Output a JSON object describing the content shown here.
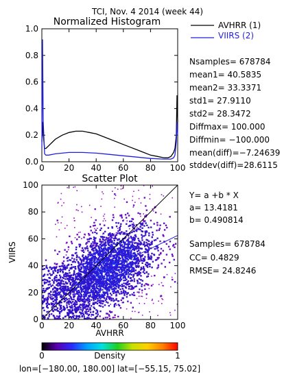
{
  "header": {
    "title": "TCI,  Nov. 4 2014 (week 44)"
  },
  "legend": {
    "entries": [
      {
        "label": "AVHRR (1)",
        "color": "#000000"
      },
      {
        "label": "VIIRS (2)",
        "color": "#1f1fdd"
      }
    ]
  },
  "stats": {
    "histogram": [
      "Nsamples= 678784",
      "mean1=    40.5835",
      "mean2=    33.3371",
      "std1=     27.9110",
      "std2=     28.3472",
      "Diffmax=  100.000",
      "Diffmin=  −100.000",
      "mean(diff)=−7.24639",
      "stddev(diff)=28.6115"
    ],
    "regression": [
      "Y= a +b * X",
      "a= 13.4181",
      "b= 0.490814"
    ],
    "fit": [
      "Samples= 678784",
      "CC=  0.4829",
      "RMSE= 24.8246"
    ]
  },
  "colorbar": {
    "label": "Density",
    "min_label": "0",
    "max_label": "1",
    "stops": [
      "#000000",
      "#5b00b0",
      "#2a2aff",
      "#00a0ff",
      "#00e0e0",
      "#20d020",
      "#c8e000",
      "#ffd000",
      "#ff8000",
      "#ff0000"
    ]
  },
  "footer": {
    "text": "lon=[−180.00, 180.00] lat=[−55.15, 75.02]"
  },
  "chart_data": [
    {
      "type": "line",
      "title": "Normalized Histogram",
      "xlim": [
        0,
        100
      ],
      "ylim": [
        0,
        1.0
      ],
      "xticks": [
        0,
        20,
        40,
        60,
        80,
        100
      ],
      "yticks": [
        0.0,
        0.2,
        0.4,
        0.6,
        0.8,
        1.0
      ],
      "ytick_labels": [
        "0.0",
        "0.2",
        "0.4",
        "0.6",
        "0.8",
        "1.0"
      ],
      "series": [
        {
          "name": "AVHRR (1)",
          "color": "#000000",
          "x": [
            0,
            0.5,
            1,
            2,
            3,
            5,
            8,
            10,
            15,
            20,
            25,
            30,
            35,
            40,
            45,
            50,
            55,
            60,
            65,
            70,
            75,
            80,
            85,
            90,
            93,
            95,
            97,
            98,
            99,
            99.5,
            100
          ],
          "y": [
            0.15,
            0.3,
            0.2,
            0.1,
            0.1,
            0.12,
            0.15,
            0.17,
            0.2,
            0.22,
            0.23,
            0.23,
            0.22,
            0.21,
            0.19,
            0.17,
            0.15,
            0.13,
            0.11,
            0.09,
            0.07,
            0.05,
            0.04,
            0.03,
            0.03,
            0.04,
            0.07,
            0.1,
            0.2,
            0.5,
            0.3
          ]
        },
        {
          "name": "VIIRS (2)",
          "color": "#1f1fdd",
          "x": [
            0,
            0.5,
            1,
            2,
            3,
            5,
            10,
            20,
            30,
            40,
            50,
            60,
            70,
            80,
            90,
            95,
            97,
            98,
            99,
            99.5,
            100
          ],
          "y": [
            0.1,
            0.92,
            0.3,
            0.06,
            0.05,
            0.05,
            0.06,
            0.07,
            0.07,
            0.065,
            0.055,
            0.045,
            0.035,
            0.025,
            0.02,
            0.02,
            0.03,
            0.05,
            0.15,
            0.3,
            0.2
          ]
        }
      ]
    },
    {
      "type": "scatter",
      "title": "Scatter Plot",
      "xlabel": "AVHRR",
      "ylabel": "VIIRS",
      "xlim": [
        0,
        100
      ],
      "ylim": [
        0,
        100
      ],
      "xticks": [
        0,
        20,
        40,
        60,
        80,
        100
      ],
      "yticks": [
        0,
        20,
        40,
        60,
        80,
        100
      ],
      "density_center": [
        47,
        37
      ],
      "density_spread": [
        18,
        17
      ],
      "correlation": 0.4829,
      "reference_line": {
        "slope": 1,
        "intercept": 0,
        "color": "#000000"
      },
      "regression_line": {
        "slope": 0.490814,
        "intercept": 13.4181,
        "color": "#1f1fdd"
      }
    }
  ]
}
